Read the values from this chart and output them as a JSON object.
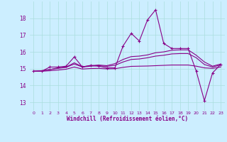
{
  "xlabel": "Windchill (Refroidissement éolien,°C)",
  "background_color": "#cceeff",
  "grid_color": "#aadddd",
  "line_color": "#880088",
  "xlim": [
    -0.5,
    23.5
  ],
  "ylim": [
    12.5,
    19.0
  ],
  "yticks": [
    13,
    14,
    15,
    16,
    17,
    18
  ],
  "xticks": [
    0,
    1,
    2,
    3,
    4,
    5,
    6,
    7,
    8,
    9,
    10,
    11,
    12,
    13,
    14,
    15,
    16,
    17,
    18,
    19,
    20,
    21,
    22,
    23
  ],
  "series_main": {
    "x": [
      0,
      1,
      2,
      3,
      4,
      5,
      6,
      7,
      8,
      9,
      10,
      11,
      12,
      13,
      14,
      15,
      16,
      17,
      18,
      19,
      20,
      21,
      22,
      23
    ],
    "y": [
      14.85,
      14.85,
      15.1,
      15.1,
      15.15,
      15.7,
      15.1,
      15.2,
      15.15,
      15.05,
      15.05,
      16.35,
      17.1,
      16.65,
      17.9,
      18.5,
      16.5,
      16.2,
      16.2,
      16.2,
      14.85,
      13.1,
      14.75,
      15.25
    ]
  },
  "series_trend1": {
    "x": [
      0,
      1,
      2,
      3,
      4,
      5,
      6,
      7,
      8,
      9,
      10,
      11,
      12,
      13,
      14,
      15,
      16,
      17,
      18,
      19,
      20,
      21,
      22,
      23
    ],
    "y": [
      14.85,
      14.87,
      14.95,
      15.05,
      15.1,
      15.35,
      15.12,
      15.18,
      15.22,
      15.18,
      15.3,
      15.55,
      15.72,
      15.75,
      15.82,
      15.95,
      16.0,
      16.1,
      16.12,
      16.12,
      15.8,
      15.4,
      15.15,
      15.28
    ]
  },
  "series_trend2": {
    "x": [
      0,
      1,
      2,
      3,
      4,
      5,
      6,
      7,
      8,
      9,
      10,
      11,
      12,
      13,
      14,
      15,
      16,
      17,
      18,
      19,
      20,
      21,
      22,
      23
    ],
    "y": [
      14.85,
      14.87,
      14.95,
      15.02,
      15.08,
      15.28,
      15.1,
      15.15,
      15.18,
      15.14,
      15.2,
      15.4,
      15.55,
      15.58,
      15.65,
      15.75,
      15.8,
      15.88,
      15.9,
      15.9,
      15.65,
      15.25,
      15.1,
      15.22
    ]
  },
  "series_flat": {
    "x": [
      0,
      1,
      2,
      3,
      4,
      5,
      6,
      7,
      8,
      9,
      10,
      11,
      12,
      13,
      14,
      15,
      16,
      17,
      18,
      19,
      20,
      21,
      22,
      23
    ],
    "y": [
      14.85,
      14.85,
      14.88,
      14.92,
      14.97,
      15.1,
      14.98,
      15.01,
      15.02,
      14.99,
      15.0,
      15.08,
      15.14,
      15.15,
      15.16,
      15.18,
      15.2,
      15.22,
      15.22,
      15.22,
      15.15,
      15.05,
      15.02,
      15.1
    ]
  }
}
